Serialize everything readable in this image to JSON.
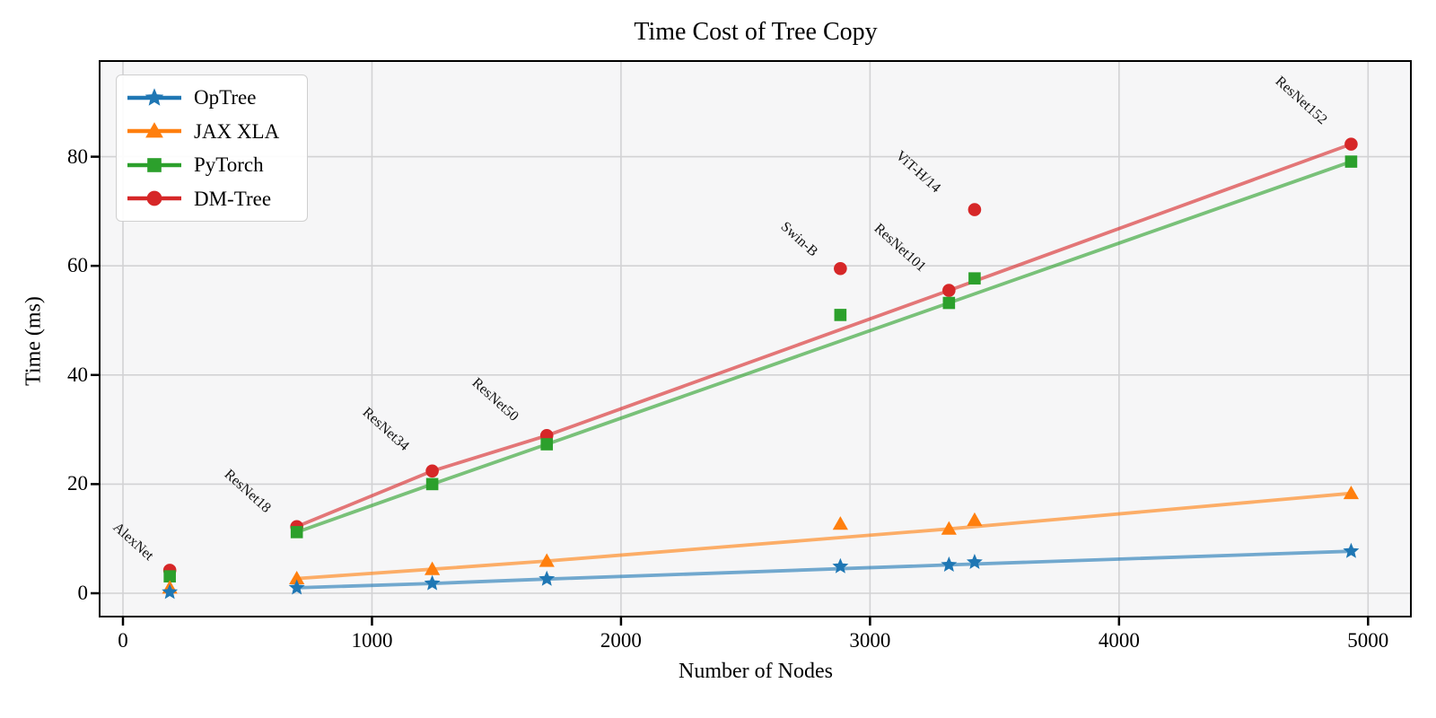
{
  "chart_data": {
    "type": "line+scatter",
    "title": "Time Cost of Tree Copy",
    "xlabel": "Number of Nodes",
    "ylabel": "Time (ms)",
    "x_ticks": [
      0,
      1000,
      2000,
      3000,
      4000,
      5000
    ],
    "y_ticks": [
      0,
      20,
      40,
      60,
      80
    ],
    "xlim": [
      -90,
      5175
    ],
    "ylim": [
      -4,
      97
    ],
    "grid": true,
    "legend_position": "upper left",
    "models": [
      {
        "label": "AlexNet",
        "nodes": 188
      },
      {
        "label": "ResNet18",
        "nodes": 698
      },
      {
        "label": "ResNet34",
        "nodes": 1242
      },
      {
        "label": "ResNet50",
        "nodes": 1702
      },
      {
        "label": "Swin-B",
        "nodes": 2881
      },
      {
        "label": "ResNet101",
        "nodes": 3317
      },
      {
        "label": "ViT-H/14",
        "nodes": 3420
      },
      {
        "label": "ResNet152",
        "nodes": 4932
      }
    ],
    "line_connected_models": [
      "ResNet18",
      "ResNet34",
      "ResNet50",
      "ResNet101",
      "ResNet152"
    ],
    "series": [
      {
        "name": "OpTree",
        "marker": "star",
        "color": "#1f77b4",
        "values": [
          0.2,
          1.0,
          1.8,
          2.6,
          4.9,
          5.2,
          5.7,
          7.7
        ]
      },
      {
        "name": "JAX XLA",
        "marker": "triangle",
        "color": "#ff7f0e",
        "values": [
          1.0,
          2.7,
          4.4,
          5.9,
          12.7,
          11.8,
          13.4,
          18.3
        ]
      },
      {
        "name": "PyTorch",
        "marker": "square",
        "color": "#2ca02c",
        "values": [
          3.1,
          11.2,
          20.0,
          27.3,
          51.0,
          53.2,
          57.7,
          79.1
        ]
      },
      {
        "name": "DM-Tree",
        "marker": "circle",
        "color": "#d62728",
        "values": [
          4.2,
          12.2,
          22.4,
          28.9,
          59.5,
          55.5,
          70.3,
          82.3
        ]
      }
    ]
  }
}
